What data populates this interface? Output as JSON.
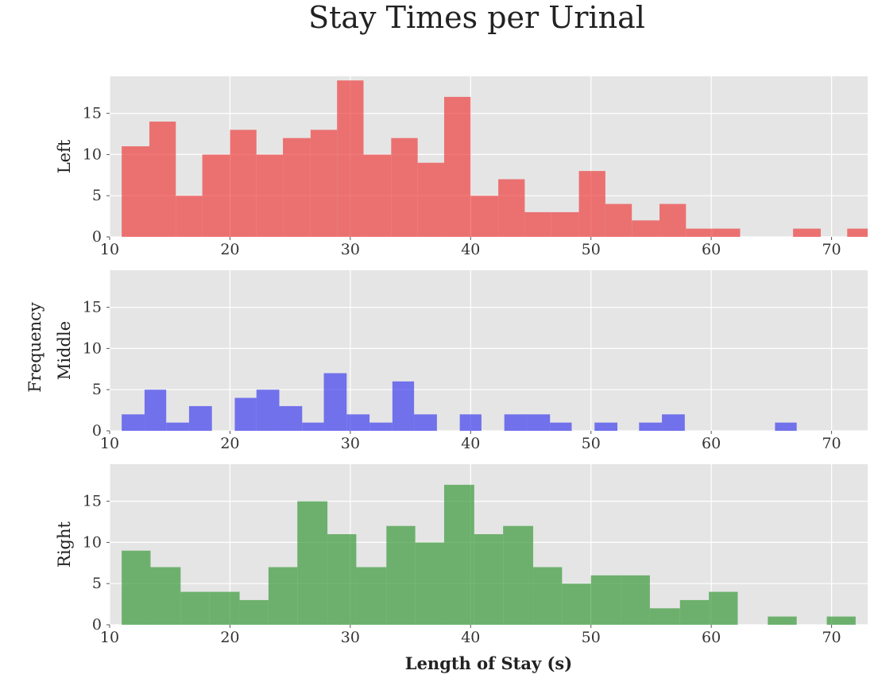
{
  "chart_data": {
    "type": "histogram",
    "title": "Stay Times per Urinal",
    "xlabel": "Length of Stay (s)",
    "shared_ylabel": "Frequency",
    "xlim": [
      10,
      73
    ],
    "ylim": [
      0,
      19.5
    ],
    "xticks": [
      "10",
      "20",
      "30",
      "40",
      "50",
      "60",
      "70"
    ],
    "yticks": [
      "0",
      "5",
      "10",
      "15"
    ],
    "grid": true,
    "panels": [
      {
        "ylabel": "Left",
        "color": "#ee4040",
        "bins": [
          {
            "x0": 11.0,
            "x1": 13.3,
            "count": 11
          },
          {
            "x0": 13.3,
            "x1": 15.5,
            "count": 14
          },
          {
            "x0": 15.5,
            "x1": 17.7,
            "count": 5
          },
          {
            "x0": 17.7,
            "x1": 20.0,
            "count": 10
          },
          {
            "x0": 20.0,
            "x1": 22.2,
            "count": 13
          },
          {
            "x0": 22.2,
            "x1": 24.4,
            "count": 10
          },
          {
            "x0": 24.4,
            "x1": 26.7,
            "count": 12
          },
          {
            "x0": 26.7,
            "x1": 28.9,
            "count": 13
          },
          {
            "x0": 28.9,
            "x1": 31.1,
            "count": 19
          },
          {
            "x0": 31.1,
            "x1": 33.4,
            "count": 10
          },
          {
            "x0": 33.4,
            "x1": 35.6,
            "count": 12
          },
          {
            "x0": 35.6,
            "x1": 37.8,
            "count": 9
          },
          {
            "x0": 37.8,
            "x1": 40.0,
            "count": 17
          },
          {
            "x0": 40.0,
            "x1": 42.3,
            "count": 5
          },
          {
            "x0": 42.3,
            "x1": 44.5,
            "count": 7
          },
          {
            "x0": 44.5,
            "x1": 46.7,
            "count": 3
          },
          {
            "x0": 46.7,
            "x1": 49.0,
            "count": 3
          },
          {
            "x0": 49.0,
            "x1": 51.2,
            "count": 8
          },
          {
            "x0": 51.2,
            "x1": 53.4,
            "count": 4
          },
          {
            "x0": 53.4,
            "x1": 55.7,
            "count": 2
          },
          {
            "x0": 55.7,
            "x1": 57.9,
            "count": 4
          },
          {
            "x0": 57.9,
            "x1": 60.1,
            "count": 1
          },
          {
            "x0": 60.1,
            "x1": 62.4,
            "count": 1
          },
          {
            "x0": 62.4,
            "x1": 64.6,
            "count": 0
          },
          {
            "x0": 64.6,
            "x1": 66.8,
            "count": 0
          },
          {
            "x0": 66.8,
            "x1": 69.1,
            "count": 1
          },
          {
            "x0": 69.1,
            "x1": 71.3,
            "count": 0
          },
          {
            "x0": 71.3,
            "x1": 73.5,
            "count": 1
          }
        ]
      },
      {
        "ylabel": "Middle",
        "color": "#4040ee",
        "bins": [
          {
            "x0": 11.0,
            "x1": 12.9,
            "count": 2
          },
          {
            "x0": 12.9,
            "x1": 14.7,
            "count": 5
          },
          {
            "x0": 14.7,
            "x1": 16.6,
            "count": 1
          },
          {
            "x0": 16.6,
            "x1": 18.5,
            "count": 3
          },
          {
            "x0": 18.5,
            "x1": 20.4,
            "count": 0
          },
          {
            "x0": 20.4,
            "x1": 22.2,
            "count": 4
          },
          {
            "x0": 22.2,
            "x1": 24.1,
            "count": 5
          },
          {
            "x0": 24.1,
            "x1": 26.0,
            "count": 3
          },
          {
            "x0": 26.0,
            "x1": 27.8,
            "count": 1
          },
          {
            "x0": 27.8,
            "x1": 29.7,
            "count": 7
          },
          {
            "x0": 29.7,
            "x1": 31.6,
            "count": 2
          },
          {
            "x0": 31.6,
            "x1": 33.5,
            "count": 1
          },
          {
            "x0": 33.5,
            "x1": 35.3,
            "count": 6
          },
          {
            "x0": 35.3,
            "x1": 37.2,
            "count": 2
          },
          {
            "x0": 37.2,
            "x1": 39.1,
            "count": 0
          },
          {
            "x0": 39.1,
            "x1": 40.9,
            "count": 2
          },
          {
            "x0": 40.9,
            "x1": 42.8,
            "count": 0
          },
          {
            "x0": 42.8,
            "x1": 44.7,
            "count": 2
          },
          {
            "x0": 44.7,
            "x1": 46.6,
            "count": 2
          },
          {
            "x0": 46.6,
            "x1": 48.4,
            "count": 1
          },
          {
            "x0": 48.4,
            "x1": 50.3,
            "count": 0
          },
          {
            "x0": 50.3,
            "x1": 52.2,
            "count": 1
          },
          {
            "x0": 52.2,
            "x1": 54.0,
            "count": 0
          },
          {
            "x0": 54.0,
            "x1": 55.9,
            "count": 1
          },
          {
            "x0": 55.9,
            "x1": 57.8,
            "count": 2
          },
          {
            "x0": 57.8,
            "x1": 59.7,
            "count": 0
          },
          {
            "x0": 59.7,
            "x1": 61.5,
            "count": 0
          },
          {
            "x0": 61.5,
            "x1": 63.4,
            "count": 0
          },
          {
            "x0": 63.4,
            "x1": 65.3,
            "count": 0
          },
          {
            "x0": 65.3,
            "x1": 67.1,
            "count": 1
          }
        ]
      },
      {
        "ylabel": "Right",
        "color": "#3a9a3a",
        "bins": [
          {
            "x0": 11.0,
            "x1": 13.4,
            "count": 9
          },
          {
            "x0": 13.4,
            "x1": 15.9,
            "count": 7
          },
          {
            "x0": 15.9,
            "x1": 18.3,
            "count": 4
          },
          {
            "x0": 18.3,
            "x1": 20.8,
            "count": 4
          },
          {
            "x0": 20.8,
            "x1": 23.2,
            "count": 3
          },
          {
            "x0": 23.2,
            "x1": 25.6,
            "count": 7
          },
          {
            "x0": 25.6,
            "x1": 28.1,
            "count": 15
          },
          {
            "x0": 28.1,
            "x1": 30.5,
            "count": 11
          },
          {
            "x0": 30.5,
            "x1": 33.0,
            "count": 7
          },
          {
            "x0": 33.0,
            "x1": 35.4,
            "count": 12
          },
          {
            "x0": 35.4,
            "x1": 37.8,
            "count": 10
          },
          {
            "x0": 37.8,
            "x1": 40.3,
            "count": 17
          },
          {
            "x0": 40.3,
            "x1": 42.7,
            "count": 11
          },
          {
            "x0": 42.7,
            "x1": 45.2,
            "count": 12
          },
          {
            "x0": 45.2,
            "x1": 47.6,
            "count": 7
          },
          {
            "x0": 47.6,
            "x1": 50.0,
            "count": 5
          },
          {
            "x0": 50.0,
            "x1": 52.5,
            "count": 6
          },
          {
            "x0": 52.5,
            "x1": 54.9,
            "count": 6
          },
          {
            "x0": 54.9,
            "x1": 57.4,
            "count": 2
          },
          {
            "x0": 57.4,
            "x1": 59.8,
            "count": 3
          },
          {
            "x0": 59.8,
            "x1": 62.2,
            "count": 4
          },
          {
            "x0": 62.2,
            "x1": 64.7,
            "count": 0
          },
          {
            "x0": 64.7,
            "x1": 67.1,
            "count": 1
          },
          {
            "x0": 67.1,
            "x1": 69.6,
            "count": 0
          },
          {
            "x0": 69.6,
            "x1": 72.0,
            "count": 1
          }
        ]
      }
    ]
  }
}
